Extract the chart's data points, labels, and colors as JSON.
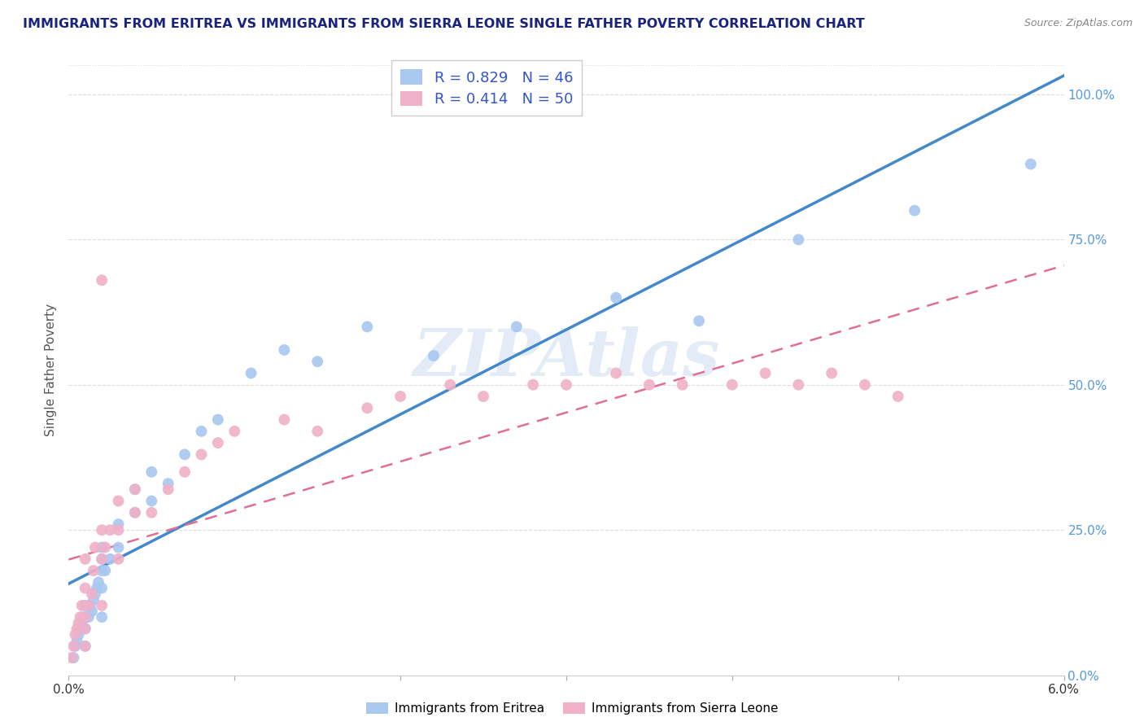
{
  "title": "IMMIGRANTS FROM ERITREA VS IMMIGRANTS FROM SIERRA LEONE SINGLE FATHER POVERTY CORRELATION CHART",
  "source_text": "Source: ZipAtlas.com",
  "ylabel": "Single Father Poverty",
  "watermark": "ZIPAtlas",
  "xlim": [
    0.0,
    0.06
  ],
  "ylim": [
    0.0,
    1.05
  ],
  "series1_color": "#a8c8f0",
  "series2_color": "#f0b0c8",
  "line1_color": "#4488cc",
  "line2_color": "#e07090",
  "R1": 0.829,
  "N1": 46,
  "R2": 0.414,
  "N2": 50,
  "legend_label1": "Immigrants from Eritrea",
  "legend_label2": "Immigrants from Sierra Leone",
  "title_color": "#1a237e",
  "legend_color": "#3355cc",
  "ytick_color": "#5599dd",
  "series1_x": [
    0.0003,
    0.0004,
    0.0005,
    0.0006,
    0.0007,
    0.0008,
    0.0009,
    0.001,
    0.001,
    0.001,
    0.001,
    0.0012,
    0.0013,
    0.0014,
    0.0015,
    0.0016,
    0.0017,
    0.0018,
    0.002,
    0.002,
    0.002,
    0.002,
    0.002,
    0.0022,
    0.0025,
    0.003,
    0.003,
    0.004,
    0.004,
    0.005,
    0.005,
    0.006,
    0.007,
    0.008,
    0.009,
    0.011,
    0.013,
    0.015,
    0.018,
    0.022,
    0.027,
    0.033,
    0.038,
    0.044,
    0.051,
    0.058
  ],
  "series1_y": [
    0.03,
    0.05,
    0.06,
    0.07,
    0.08,
    0.09,
    0.1,
    0.05,
    0.08,
    0.1,
    0.12,
    0.1,
    0.12,
    0.11,
    0.13,
    0.14,
    0.15,
    0.16,
    0.1,
    0.15,
    0.18,
    0.2,
    0.22,
    0.18,
    0.2,
    0.22,
    0.26,
    0.28,
    0.32,
    0.3,
    0.35,
    0.33,
    0.38,
    0.42,
    0.44,
    0.52,
    0.56,
    0.54,
    0.6,
    0.55,
    0.6,
    0.65,
    0.61,
    0.75,
    0.8,
    0.88
  ],
  "series2_x": [
    0.0002,
    0.0003,
    0.0004,
    0.0005,
    0.0006,
    0.0007,
    0.0008,
    0.001,
    0.001,
    0.001,
    0.001,
    0.001,
    0.0012,
    0.0014,
    0.0015,
    0.0016,
    0.002,
    0.002,
    0.002,
    0.0022,
    0.0025,
    0.003,
    0.003,
    0.003,
    0.004,
    0.004,
    0.005,
    0.006,
    0.007,
    0.008,
    0.009,
    0.01,
    0.013,
    0.015,
    0.018,
    0.02,
    0.023,
    0.025,
    0.028,
    0.03,
    0.033,
    0.035,
    0.037,
    0.04,
    0.042,
    0.044,
    0.046,
    0.048,
    0.05,
    0.002
  ],
  "series2_y": [
    0.03,
    0.05,
    0.07,
    0.08,
    0.09,
    0.1,
    0.12,
    0.05,
    0.08,
    0.1,
    0.15,
    0.2,
    0.12,
    0.14,
    0.18,
    0.22,
    0.12,
    0.2,
    0.25,
    0.22,
    0.25,
    0.2,
    0.25,
    0.3,
    0.28,
    0.32,
    0.28,
    0.32,
    0.35,
    0.38,
    0.4,
    0.42,
    0.44,
    0.42,
    0.46,
    0.48,
    0.5,
    0.48,
    0.5,
    0.5,
    0.52,
    0.5,
    0.5,
    0.5,
    0.52,
    0.5,
    0.52,
    0.5,
    0.48,
    0.68
  ]
}
